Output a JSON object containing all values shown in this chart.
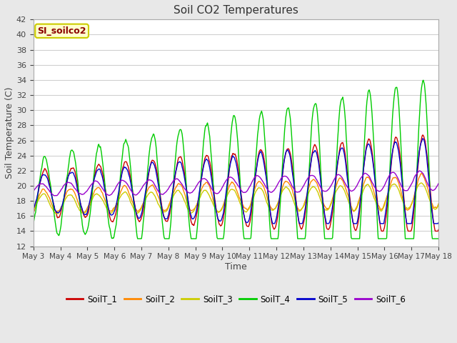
{
  "title": "Soil CO2 Temperatures",
  "xlabel": "Time",
  "ylabel": "Soil Temperature (C)",
  "ylim": [
    12,
    42
  ],
  "yticks": [
    12,
    14,
    16,
    18,
    20,
    22,
    24,
    26,
    28,
    30,
    32,
    34,
    36,
    38,
    40,
    42
  ],
  "fig_bg_color": "#e8e8e8",
  "plot_bg_color": "#ffffff",
  "grid_color": "#d0d0d0",
  "annotation_text": "SI_soilco2",
  "annotation_color": "#8b0000",
  "annotation_bg": "#ffffcc",
  "annotation_border": "#cccc00",
  "series_colors": {
    "SoilT_1": "#cc0000",
    "SoilT_2": "#ff8800",
    "SoilT_3": "#cccc00",
    "SoilT_4": "#00cc00",
    "SoilT_5": "#0000cc",
    "SoilT_6": "#9900cc"
  },
  "xtick_labels": [
    "May 3",
    "May 4",
    "May 5",
    "May 6",
    "May 7",
    "May 8",
    "May 9",
    "May 10",
    "May 11",
    "May 12",
    "May 13",
    "May 14",
    "May 15",
    "May 16",
    "May 17",
    "May 18"
  ],
  "num_points": 720,
  "time_days": 15
}
